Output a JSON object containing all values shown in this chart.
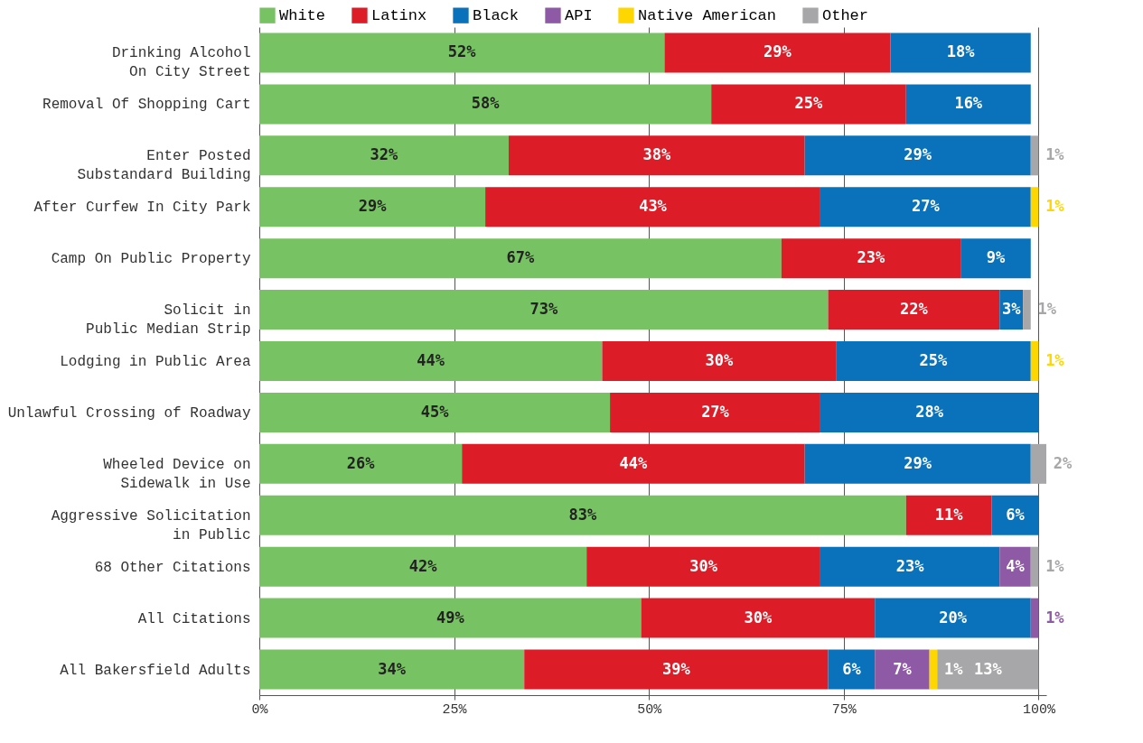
{
  "chart_data": {
    "type": "bar",
    "orientation": "horizontal",
    "stacked": true,
    "legend": "top",
    "grid": "x",
    "categories": [
      "Drinking Alcohol\nOn City Street",
      "Removal Of Shopping Cart",
      "Enter Posted\nSubstandard Building",
      "After Curfew In City Park",
      "Camp On Public Property",
      "Solicit in\nPublic Median Strip",
      "Lodging in Public Area",
      "Unlawful Crossing of Roadway",
      "Wheeled Device on\nSidewalk in Use",
      "Aggressive Solicitation\nin Public",
      "68 Other Citations",
      "All Citations",
      "All Bakersfield Adults"
    ],
    "xlim": [
      0,
      101
    ],
    "xticks": [
      {
        "value": 0,
        "label": "0%"
      },
      {
        "value": 25,
        "label": "25%"
      },
      {
        "value": 50,
        "label": "50%"
      },
      {
        "value": 75,
        "label": "75%"
      },
      {
        "value": 100,
        "label": "100%"
      }
    ],
    "series": [
      {
        "name": "White",
        "color": "#77c262",
        "values": [
          52,
          58,
          32,
          29,
          67,
          73,
          44,
          45,
          26,
          83,
          42,
          49,
          34
        ],
        "value_labels": [
          "52%",
          "58%",
          "32%",
          "29%",
          "67%",
          "73%",
          "44%",
          "45%",
          "26%",
          "83%",
          "42%",
          "49%",
          "34%"
        ]
      },
      {
        "name": "Latinx",
        "color": "#dc1c27",
        "values": [
          29,
          25,
          38,
          43,
          23,
          22,
          30,
          27,
          44,
          11,
          30,
          30,
          39
        ],
        "value_labels": [
          "29%",
          "25%",
          "38%",
          "43%",
          "23%",
          "22%",
          "30%",
          "27%",
          "44%",
          "11%",
          "30%",
          "30%",
          "39%"
        ]
      },
      {
        "name": "Black",
        "color": "#0a72ba",
        "values": [
          18,
          16,
          29,
          27,
          9,
          3,
          25,
          28,
          29,
          6,
          23,
          20,
          6
        ],
        "value_labels": [
          "18%",
          "16%",
          "29%",
          "27%",
          "9%",
          "3%",
          "25%",
          "28%",
          "29%",
          "6%",
          "23%",
          "20%",
          "6%"
        ]
      },
      {
        "name": "API",
        "color": "#8f5aa5",
        "values": [
          null,
          null,
          null,
          null,
          null,
          null,
          null,
          null,
          null,
          null,
          4,
          1,
          7
        ],
        "value_labels": [
          null,
          null,
          null,
          null,
          null,
          null,
          null,
          null,
          null,
          null,
          "4%",
          "1%",
          "7%"
        ]
      },
      {
        "name": "Native American",
        "color": "#ffd700",
        "values": [
          null,
          null,
          null,
          1,
          null,
          null,
          1,
          null,
          null,
          null,
          null,
          null,
          1
        ],
        "value_labels": [
          null,
          null,
          null,
          "1%",
          null,
          null,
          "1%",
          null,
          null,
          null,
          null,
          null,
          "1%"
        ]
      },
      {
        "name": "Other",
        "color": "#a7a7a9",
        "values": [
          null,
          null,
          1,
          null,
          null,
          1,
          null,
          null,
          2,
          null,
          1,
          null,
          13
        ],
        "value_labels": [
          null,
          null,
          "1%",
          null,
          null,
          "1%",
          null,
          null,
          "2%",
          null,
          "1%",
          null,
          "13%"
        ]
      }
    ]
  }
}
